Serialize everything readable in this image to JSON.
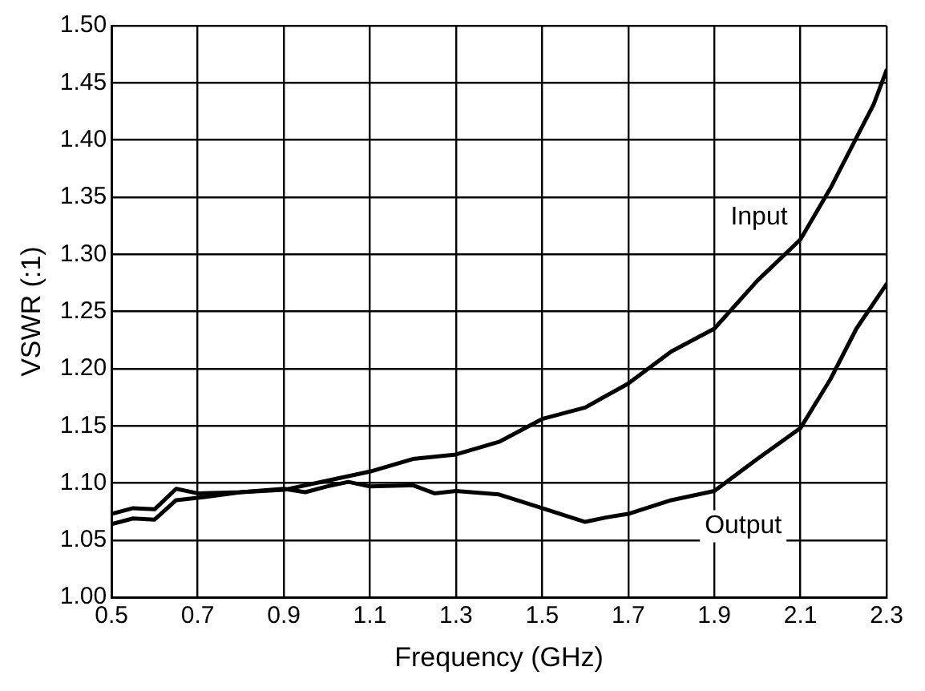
{
  "chart_data": {
    "type": "line",
    "xlabel": "Frequency (GHz)",
    "ylabel": "VSWR (:1)",
    "xlim": [
      0.5,
      2.3
    ],
    "xticks": [
      0.5,
      0.7,
      0.9,
      1.1,
      1.3,
      1.5,
      1.7,
      1.9,
      2.1,
      2.3
    ],
    "ylim": [
      1.0,
      1.5
    ],
    "yticks": [
      {
        "value": 1.0,
        "label": "1.00"
      },
      {
        "value": 1.05,
        "label": "1.05"
      },
      {
        "value": 1.1,
        "label": "1.10"
      },
      {
        "value": 1.15,
        "label": "1.15"
      },
      {
        "value": 1.2,
        "label": "1.20"
      },
      {
        "value": 1.25,
        "label": "1.25"
      },
      {
        "value": 1.3,
        "label": "1.30"
      },
      {
        "value": 1.35,
        "label": "1.35"
      },
      {
        "value": 1.4,
        "label": "1.40"
      },
      {
        "value": 1.45,
        "label": "1.45"
      },
      {
        "value": 1.5,
        "label": "1.50"
      }
    ],
    "grid": true,
    "legend": false,
    "marker": "none",
    "line_style": "solid",
    "series": [
      {
        "name": "Input",
        "color": "#000000",
        "x": [
          0.5,
          0.55,
          0.6,
          0.65,
          0.7,
          0.8,
          0.9,
          1.0,
          1.1,
          1.2,
          1.3,
          1.4,
          1.5,
          1.6,
          1.7,
          1.8,
          1.9,
          2.0,
          2.1,
          2.17,
          2.23,
          2.27,
          2.3
        ],
        "values": [
          1.064,
          1.069,
          1.068,
          1.085,
          1.087,
          1.092,
          1.094,
          1.102,
          1.11,
          1.121,
          1.125,
          1.136,
          1.156,
          1.166,
          1.187,
          1.215,
          1.235,
          1.277,
          1.313,
          1.358,
          1.402,
          1.431,
          1.461
        ]
      },
      {
        "name": "Output",
        "color": "#000000",
        "x": [
          0.5,
          0.55,
          0.6,
          0.65,
          0.7,
          0.8,
          0.9,
          0.95,
          1.0,
          1.05,
          1.1,
          1.2,
          1.25,
          1.3,
          1.4,
          1.5,
          1.6,
          1.65,
          1.7,
          1.8,
          1.9,
          2.0,
          2.1,
          2.17,
          2.23,
          2.3
        ],
        "values": [
          1.073,
          1.078,
          1.077,
          1.095,
          1.091,
          1.092,
          1.095,
          1.092,
          1.097,
          1.101,
          1.097,
          1.098,
          1.091,
          1.093,
          1.09,
          1.078,
          1.066,
          1.07,
          1.073,
          1.085,
          1.093,
          1.121,
          1.148,
          1.191,
          1.235,
          1.274
        ]
      }
    ]
  }
}
